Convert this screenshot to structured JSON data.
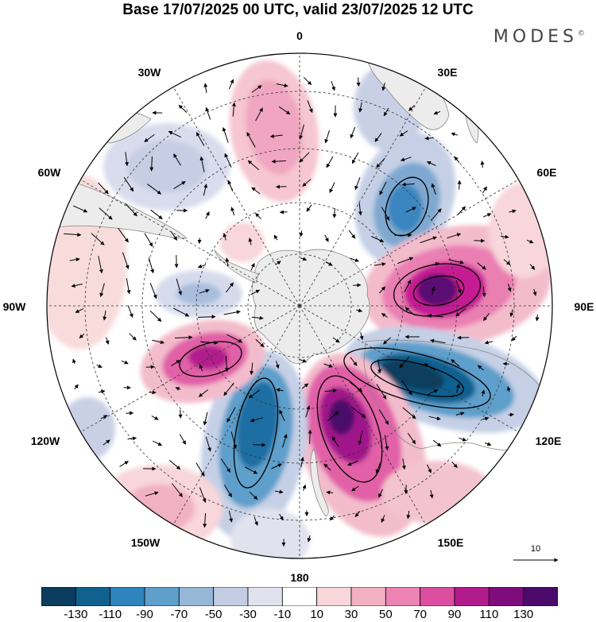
{
  "title": "Base 17/07/2025 00 UTC, valid 23/07/2025 12 UTC",
  "brand": {
    "name": "MODES",
    "mark": "©"
  },
  "map": {
    "projection": "south-polar-stereographic",
    "longitude_labels": [
      {
        "text": "0",
        "lon": 0
      },
      {
        "text": "30E",
        "lon": 30
      },
      {
        "text": "60E",
        "lon": 60
      },
      {
        "text": "90E",
        "lon": 90
      },
      {
        "text": "120E",
        "lon": 120
      },
      {
        "text": "150E",
        "lon": 150
      },
      {
        "text": "180",
        "lon": 180
      },
      {
        "text": "150W",
        "lon": -150
      },
      {
        "text": "120W",
        "lon": -120
      },
      {
        "text": "90W",
        "lon": -90
      },
      {
        "text": "60W",
        "lon": -60
      },
      {
        "text": "30W",
        "lon": -30
      }
    ],
    "colors": {
      "neg_dark": "#0b3a5c",
      "pos_dark": "#4a0a6e",
      "land": "#ececec",
      "graticule": "#333333"
    }
  },
  "reference_vector": {
    "label": "10"
  },
  "colorbar": {
    "colors": [
      "#0c3d5e",
      "#11618f",
      "#2e84bd",
      "#5e9fcb",
      "#95b7d8",
      "#c2cce3",
      "#e2e2ee",
      "#ffffff",
      "#f8d6d9",
      "#f1b1c2",
      "#ec83b2",
      "#dc4ea0",
      "#b21b8c",
      "#7e0c7c",
      "#4c0a6a"
    ],
    "labels": [
      "-130",
      "-110",
      "-90",
      "-70",
      "-50",
      "-30",
      "-10",
      "10",
      "30",
      "50",
      "70",
      "90",
      "110",
      "130"
    ]
  }
}
